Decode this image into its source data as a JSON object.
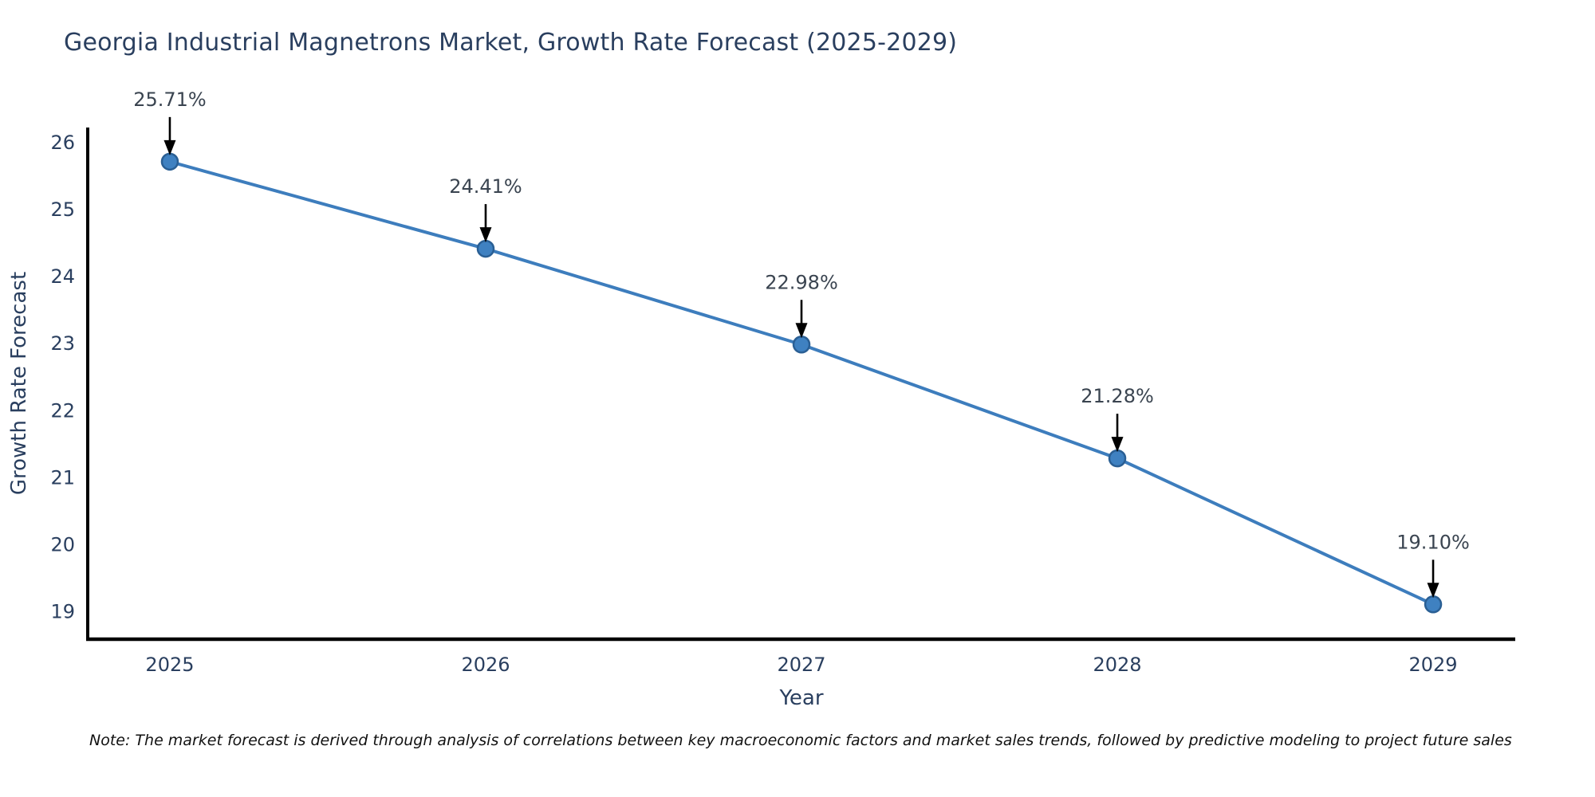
{
  "header": {
    "title": "Georgia Industrial Magnetrons Market, Growth Rate Forecast (2025-2029)"
  },
  "footnote": {
    "text": "Note: The market forecast is derived through analysis of correlations between key macroeconomic factors and market sales trends, followed by predictive modeling to project future sales"
  },
  "chart_data": {
    "type": "line",
    "title": "Georgia Industrial Magnetrons Market, Growth Rate Forecast (2025-2029)",
    "xlabel": "Year",
    "ylabel": "Growth Rate Forecast",
    "x": [
      2025,
      2026,
      2027,
      2028,
      2029
    ],
    "y": [
      25.71,
      24.41,
      22.98,
      21.28,
      19.1
    ],
    "point_labels": [
      "25.71%",
      "24.41%",
      "22.98%",
      "21.28%",
      "19.10%"
    ],
    "xticks": [
      "2025",
      "2026",
      "2027",
      "2028",
      "2029"
    ],
    "yticks": [
      19,
      20,
      21,
      22,
      23,
      24,
      25,
      26
    ],
    "xlim": [
      2024.74,
      2029.26
    ],
    "ylim": [
      18.58,
      26.22
    ],
    "grid": false,
    "legend": false,
    "annotations_have_arrows": true,
    "colors": {
      "line": "#3d7dbd",
      "marker_fill": "#3f81c1",
      "marker_edge": "#2a5f94",
      "axis_line": "#000000",
      "arrow": "#000000",
      "tick_text": "#2a3f5f",
      "axis_title_text": "#2a3f5f",
      "annotation_text": "#3a4450"
    }
  }
}
